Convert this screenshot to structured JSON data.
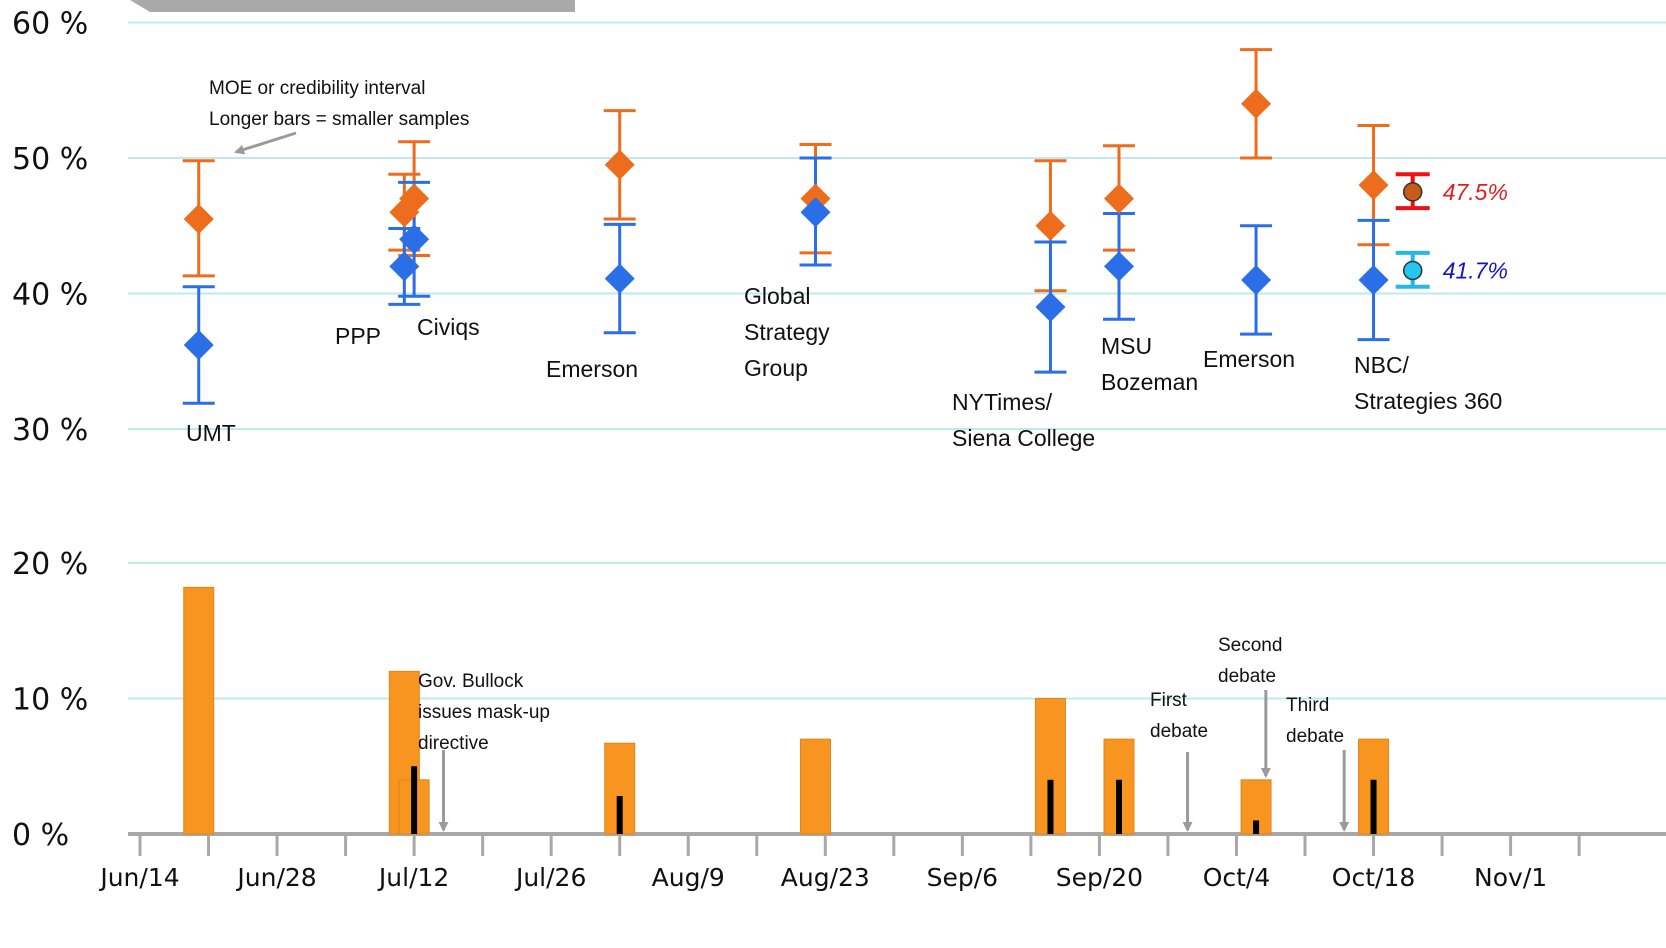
{
  "chart_data": [
    {
      "type": "scatter",
      "subtype": "polls-with-error-bars",
      "y_axis": {
        "ylim": [
          30,
          60
        ],
        "ticks": [
          {
            "value": 60,
            "label": "60 %"
          },
          {
            "value": 50,
            "label": "50 %"
          },
          {
            "value": 40,
            "label": "40 %"
          },
          {
            "value": 30,
            "label": "30 %"
          }
        ],
        "grid": true
      },
      "series": [
        {
          "color": "#ee6d1c",
          "marker": "diamond",
          "points": [
            {
              "x": "2020-06-20",
              "y": 45.5,
              "low": 41.3,
              "high": 49.8
            },
            {
              "x": "2020-07-11",
              "y": 46.0,
              "low": 43.2,
              "high": 48.8
            },
            {
              "x": "2020-07-12",
              "y": 47.0,
              "low": 42.8,
              "high": 51.2
            },
            {
              "x": "2020-08-02",
              "y": 49.5,
              "low": 45.5,
              "high": 53.5
            },
            {
              "x": "2020-08-22",
              "y": 47.0,
              "low": 43.0,
              "high": 51.0
            },
            {
              "x": "2020-09-15",
              "y": 45.0,
              "low": 40.2,
              "high": 49.8
            },
            {
              "x": "2020-09-22",
              "y": 47.0,
              "low": 43.2,
              "high": 50.9
            },
            {
              "x": "2020-10-06",
              "y": 54.0,
              "low": 50.0,
              "high": 58.0
            },
            {
              "x": "2020-10-18",
              "y": 48.0,
              "low": 43.6,
              "high": 52.4
            }
          ]
        },
        {
          "color": "#2a6ee8",
          "marker": "diamond",
          "points": [
            {
              "x": "2020-06-20",
              "y": 36.2,
              "low": 31.9,
              "high": 40.5
            },
            {
              "x": "2020-07-11",
              "y": 42.0,
              "low": 39.2,
              "high": 44.8
            },
            {
              "x": "2020-07-12",
              "y": 44.0,
              "low": 39.8,
              "high": 48.2
            },
            {
              "x": "2020-08-02",
              "y": 41.1,
              "low": 37.1,
              "high": 45.1
            },
            {
              "x": "2020-08-22",
              "y": 46.0,
              "low": 42.1,
              "high": 50.0
            },
            {
              "x": "2020-09-15",
              "y": 39.0,
              "low": 34.2,
              "high": 43.8
            },
            {
              "x": "2020-09-22",
              "y": 42.0,
              "low": 38.1,
              "high": 45.9
            },
            {
              "x": "2020-10-06",
              "y": 41.0,
              "low": 37.0,
              "high": 45.0
            },
            {
              "x": "2020-10-18",
              "y": 41.0,
              "low": 36.6,
              "high": 45.4
            }
          ]
        }
      ],
      "averages": [
        {
          "x": "2020-10-22",
          "y": 47.5,
          "low": 46.3,
          "high": 48.8,
          "label": "47.5%",
          "fill": "#c85a1a",
          "bar_color": "#ee1111",
          "text_color": "#e02020"
        },
        {
          "x": "2020-10-22",
          "y": 41.7,
          "low": 40.5,
          "high": 43.0,
          "label": "41.7%",
          "fill": "#22c8f0",
          "bar_color": "#22b8e8",
          "text_color": "#1515c0"
        }
      ],
      "poll_labels": [
        {
          "lines": [
            "UMT"
          ]
        },
        {
          "lines": [
            "PPP"
          ]
        },
        {
          "lines": [
            "Civiqs"
          ]
        },
        {
          "lines": [
            "Emerson"
          ]
        },
        {
          "lines": [
            "Global",
            "Strategy",
            "Group"
          ]
        },
        {
          "lines": [
            "NYTimes/",
            "Siena College"
          ]
        },
        {
          "lines": [
            "MSU",
            "Bozeman"
          ]
        },
        {
          "lines": [
            "Emerson"
          ]
        },
        {
          "lines": [
            "NBC/",
            "Strategies 360"
          ]
        }
      ],
      "annotation": {
        "lines": [
          "MOE or credibility interval",
          "Longer bars = smaller samples"
        ]
      }
    },
    {
      "type": "bar",
      "y_axis": {
        "ylim": [
          0,
          20
        ],
        "ticks": [
          {
            "value": 20,
            "label": "20 %"
          },
          {
            "value": 10,
            "label": "10 %"
          },
          {
            "value": 0,
            "label": "0 %"
          }
        ],
        "grid": true
      },
      "x_axis": {
        "start": "2020-06-14",
        "end": "2020-11-01",
        "ticks": [
          {
            "date": "2020-06-14",
            "label": "Jun/14"
          },
          {
            "date": "2020-06-28",
            "label": "Jun/28"
          },
          {
            "date": "2020-07-12",
            "label": "Jul/12"
          },
          {
            "date": "2020-07-26",
            "label": "Jul/26"
          },
          {
            "date": "2020-08-09",
            "label": "Aug/9"
          },
          {
            "date": "2020-08-23",
            "label": "Aug/23"
          },
          {
            "date": "2020-09-06",
            "label": "Sep/6"
          },
          {
            "date": "2020-09-20",
            "label": "Sep/20"
          },
          {
            "date": "2020-10-04",
            "label": "Oct/4"
          },
          {
            "date": "2020-10-18",
            "label": "Oct/18"
          },
          {
            "date": "2020-11-01",
            "label": "Nov/1"
          }
        ]
      },
      "bars": [
        {
          "x": "2020-06-20",
          "value": 18.2
        },
        {
          "x": "2020-07-11",
          "value": 12.0
        },
        {
          "x": "2020-07-12",
          "value": 4.0
        },
        {
          "x": "2020-08-02",
          "value": 6.7
        },
        {
          "x": "2020-08-22",
          "value": 7.0
        },
        {
          "x": "2020-09-15",
          "value": 10.0
        },
        {
          "x": "2020-09-22",
          "value": 7.0
        },
        {
          "x": "2020-10-06",
          "value": 4.0
        },
        {
          "x": "2020-10-18",
          "value": 7.0
        }
      ],
      "inner_bars": [
        {
          "x": "2020-07-12",
          "value": 5.0
        },
        {
          "x": "2020-08-02",
          "value": 2.8
        },
        {
          "x": "2020-09-15",
          "value": 4.0
        },
        {
          "x": "2020-09-22",
          "value": 4.0
        },
        {
          "x": "2020-10-06",
          "value": 1.0
        },
        {
          "x": "2020-10-18",
          "value": 4.0
        }
      ],
      "colors": {
        "bar": "#f89420",
        "inner_bar": "#000000",
        "grid": "#bfe8ef",
        "axis": "#a8a8a8"
      },
      "events": [
        {
          "x": "2020-07-15",
          "lines": [
            "Gov. Bullock",
            "issues mask-up",
            "directive"
          ]
        },
        {
          "x": "2020-09-29",
          "lines": [
            "First",
            "debate"
          ]
        },
        {
          "x": "2020-10-07",
          "lines": [
            "Second",
            "debate"
          ]
        },
        {
          "x": "2020-10-15",
          "lines": [
            "Third",
            "debate"
          ]
        }
      ]
    }
  ]
}
